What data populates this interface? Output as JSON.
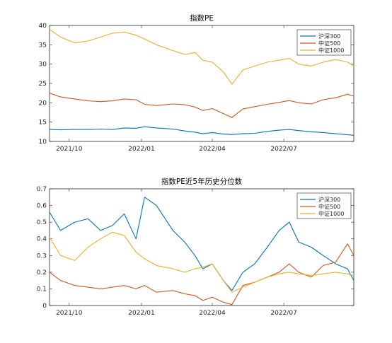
{
  "chart_data": [
    {
      "type": "line",
      "title": "指数PE",
      "xlabel": "",
      "ylabel": "",
      "xlim": [
        "2021-09-06",
        "2022-09-28"
      ],
      "ylim": [
        10,
        40
      ],
      "yticks": [
        10,
        15,
        20,
        25,
        30,
        35,
        40
      ],
      "xticks": [
        {
          "label": "2021/10",
          "date": "2021-10-01"
        },
        {
          "label": "2022/01",
          "date": "2022-01-01"
        },
        {
          "label": "2022/04",
          "date": "2022-04-01"
        },
        {
          "label": "2022/07",
          "date": "2022-07-01"
        }
      ],
      "grid": false,
      "legend_position": "top-right",
      "series": [
        {
          "name": "沪深300",
          "color": "#0072BD",
          "x": [
            "2021-09-06",
            "2021-09-20",
            "2021-10-08",
            "2021-10-25",
            "2021-11-10",
            "2021-11-25",
            "2021-12-10",
            "2021-12-25",
            "2022-01-05",
            "2022-01-20",
            "2022-02-10",
            "2022-02-25",
            "2022-03-10",
            "2022-03-20",
            "2022-04-01",
            "2022-04-15",
            "2022-04-26",
            "2022-05-10",
            "2022-05-25",
            "2022-06-10",
            "2022-06-25",
            "2022-07-08",
            "2022-07-20",
            "2022-08-05",
            "2022-08-20",
            "2022-09-05",
            "2022-09-28"
          ],
          "values": [
            13.1,
            13.0,
            13.1,
            13.1,
            13.2,
            13.1,
            13.5,
            13.4,
            13.8,
            13.5,
            13.2,
            12.7,
            12.4,
            12.0,
            12.3,
            11.9,
            11.8,
            12.0,
            12.1,
            12.6,
            12.9,
            13.1,
            12.8,
            12.5,
            12.3,
            12.0,
            11.6
          ]
        },
        {
          "name": "中证500",
          "color": "#D95319",
          "x": [
            "2021-09-06",
            "2021-09-20",
            "2021-10-08",
            "2021-10-25",
            "2021-11-10",
            "2021-11-25",
            "2021-12-10",
            "2021-12-25",
            "2022-01-05",
            "2022-01-20",
            "2022-02-10",
            "2022-02-25",
            "2022-03-10",
            "2022-03-20",
            "2022-04-01",
            "2022-04-15",
            "2022-04-26",
            "2022-05-10",
            "2022-05-25",
            "2022-06-10",
            "2022-06-25",
            "2022-07-08",
            "2022-07-20",
            "2022-08-05",
            "2022-08-20",
            "2022-09-05",
            "2022-09-20",
            "2022-09-28"
          ],
          "values": [
            22.5,
            21.5,
            21.0,
            20.5,
            20.3,
            20.5,
            21.0,
            20.8,
            19.6,
            19.3,
            19.7,
            19.5,
            18.9,
            18.0,
            18.5,
            17.2,
            16.2,
            18.4,
            19.0,
            19.6,
            20.1,
            20.6,
            20.0,
            19.7,
            20.8,
            21.3,
            22.2,
            21.7
          ]
        },
        {
          "name": "中证1000",
          "color": "#EDB120",
          "x": [
            "2021-09-06",
            "2021-09-20",
            "2021-10-08",
            "2021-10-25",
            "2021-11-10",
            "2021-11-25",
            "2021-12-10",
            "2021-12-25",
            "2022-01-05",
            "2022-01-20",
            "2022-02-10",
            "2022-02-25",
            "2022-03-10",
            "2022-03-20",
            "2022-04-01",
            "2022-04-15",
            "2022-04-26",
            "2022-05-10",
            "2022-05-25",
            "2022-06-10",
            "2022-06-25",
            "2022-07-08",
            "2022-07-20",
            "2022-08-05",
            "2022-08-20",
            "2022-09-05",
            "2022-09-20",
            "2022-09-28"
          ],
          "values": [
            39.0,
            37.0,
            35.5,
            36.0,
            37.0,
            38.0,
            38.3,
            37.5,
            36.5,
            35.0,
            33.5,
            32.5,
            33.0,
            31.0,
            30.5,
            28.0,
            24.8,
            28.5,
            29.5,
            30.5,
            31.0,
            31.5,
            30.0,
            29.5,
            30.5,
            31.2,
            30.5,
            29.5
          ]
        }
      ]
    },
    {
      "type": "line",
      "title": "指数PE近5年历史分位数",
      "xlabel": "",
      "ylabel": "",
      "xlim": [
        "2021-09-06",
        "2022-09-28"
      ],
      "ylim": [
        0,
        0.7
      ],
      "yticks": [
        0,
        0.1,
        0.2,
        0.3,
        0.4,
        0.5,
        0.6,
        0.7
      ],
      "xticks": [
        {
          "label": "2021/10",
          "date": "2021-10-01"
        },
        {
          "label": "2022/01",
          "date": "2022-01-01"
        },
        {
          "label": "2022/04",
          "date": "2022-04-01"
        },
        {
          "label": "2022/07",
          "date": "2022-07-01"
        }
      ],
      "grid": false,
      "legend_position": "top-right",
      "series": [
        {
          "name": "沪深300",
          "color": "#0072BD",
          "x": [
            "2021-09-06",
            "2021-09-20",
            "2021-10-08",
            "2021-10-25",
            "2021-11-10",
            "2021-11-25",
            "2021-12-10",
            "2021-12-25",
            "2022-01-05",
            "2022-01-20",
            "2022-02-10",
            "2022-02-25",
            "2022-03-10",
            "2022-03-20",
            "2022-04-01",
            "2022-04-15",
            "2022-04-26",
            "2022-05-10",
            "2022-05-25",
            "2022-06-10",
            "2022-06-25",
            "2022-07-08",
            "2022-07-20",
            "2022-08-05",
            "2022-08-20",
            "2022-09-05",
            "2022-09-20",
            "2022-09-28"
          ],
          "values": [
            0.56,
            0.45,
            0.5,
            0.52,
            0.45,
            0.48,
            0.55,
            0.4,
            0.65,
            0.6,
            0.45,
            0.38,
            0.3,
            0.22,
            0.25,
            0.15,
            0.09,
            0.2,
            0.25,
            0.35,
            0.45,
            0.5,
            0.38,
            0.35,
            0.3,
            0.25,
            0.22,
            0.15
          ]
        },
        {
          "name": "中证500",
          "color": "#D95319",
          "x": [
            "2021-09-06",
            "2021-09-20",
            "2021-10-08",
            "2021-10-25",
            "2021-11-10",
            "2021-11-25",
            "2021-12-10",
            "2021-12-25",
            "2022-01-05",
            "2022-01-20",
            "2022-02-10",
            "2022-02-25",
            "2022-03-10",
            "2022-03-20",
            "2022-04-01",
            "2022-04-15",
            "2022-04-26",
            "2022-05-10",
            "2022-05-25",
            "2022-06-10",
            "2022-06-25",
            "2022-07-08",
            "2022-07-20",
            "2022-08-05",
            "2022-08-20",
            "2022-09-05",
            "2022-09-20",
            "2022-09-28"
          ],
          "values": [
            0.2,
            0.15,
            0.12,
            0.11,
            0.1,
            0.11,
            0.12,
            0.1,
            0.12,
            0.08,
            0.09,
            0.07,
            0.06,
            0.03,
            0.05,
            0.02,
            0.005,
            0.12,
            0.14,
            0.17,
            0.2,
            0.25,
            0.2,
            0.17,
            0.24,
            0.26,
            0.37,
            0.3
          ]
        },
        {
          "name": "中证1000",
          "color": "#EDB120",
          "x": [
            "2021-09-06",
            "2021-09-20",
            "2021-10-08",
            "2021-10-25",
            "2021-11-10",
            "2021-11-25",
            "2021-12-10",
            "2021-12-25",
            "2022-01-05",
            "2022-01-20",
            "2022-02-10",
            "2022-02-25",
            "2022-03-10",
            "2022-03-20",
            "2022-04-01",
            "2022-04-15",
            "2022-04-26",
            "2022-05-10",
            "2022-05-25",
            "2022-06-10",
            "2022-06-25",
            "2022-07-08",
            "2022-07-20",
            "2022-08-05",
            "2022-08-20",
            "2022-09-05",
            "2022-09-20",
            "2022-09-28"
          ],
          "values": [
            0.41,
            0.3,
            0.27,
            0.35,
            0.4,
            0.44,
            0.42,
            0.32,
            0.28,
            0.24,
            0.22,
            0.2,
            0.22,
            0.23,
            0.25,
            0.15,
            0.08,
            0.11,
            0.14,
            0.17,
            0.19,
            0.2,
            0.19,
            0.18,
            0.19,
            0.2,
            0.19,
            0.18
          ]
        }
      ]
    }
  ]
}
